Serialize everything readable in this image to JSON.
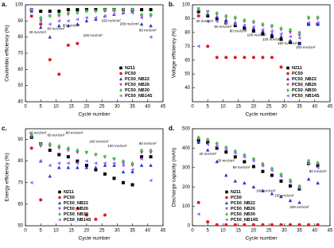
{
  "chart_data": [
    {
      "type": "scatter",
      "panel": "a.",
      "x_label": "Cycle number",
      "y_label": "Coulombic efficiency (%)",
      "x": [
        2,
        5,
        8,
        11,
        14,
        17,
        20,
        23,
        26,
        29,
        32,
        35,
        38,
        41
      ],
      "xlim": [
        0,
        45
      ],
      "xticks": [
        0,
        5,
        10,
        15,
        20,
        25,
        30,
        35,
        40,
        45
      ],
      "ylim": [
        40,
        100
      ],
      "yticks": [
        40,
        50,
        60,
        70,
        80,
        90,
        100
      ],
      "legend": "lower right",
      "series": [
        {
          "name": "N211",
          "color": "#000000",
          "marker": "square",
          "values": [
            97,
            96,
            96,
            96,
            97,
            97,
            97,
            97,
            97,
            97,
            97,
            97,
            97,
            97
          ]
        },
        {
          "name": "PC50",
          "color": "#e41a1c",
          "marker": "circle",
          "values": [
            93,
            88,
            66,
            57,
            75,
            76,
            null,
            null,
            null,
            null,
            null,
            null,
            null,
            null
          ]
        },
        {
          "name": "PC50_NB22",
          "color": "#2233cc",
          "marker": "triangle-up",
          "values": [
            96,
            86,
            80,
            87,
            87,
            88,
            90,
            91,
            93,
            94,
            95,
            96,
            88,
            87
          ]
        },
        {
          "name": "PC50_NB26",
          "color": "#cc33cc",
          "marker": "triangle-down",
          "values": [
            97,
            91,
            93,
            93,
            94,
            95,
            96,
            96,
            96,
            96,
            97,
            97,
            93,
            93
          ]
        },
        {
          "name": "PC50_NB30",
          "color": "#33cc33",
          "marker": "diamond",
          "values": [
            97,
            92,
            93,
            94,
            95,
            95,
            96,
            96,
            97,
            97,
            97,
            97,
            94,
            94
          ]
        },
        {
          "name": "PC50_NB14S",
          "color": "#9966ff",
          "marker": "triangle-left",
          "values": [
            97,
            90,
            88,
            90,
            90,
            91,
            92,
            92,
            93,
            94,
            95,
            95,
            92,
            80
          ]
        }
      ],
      "annotations": [
        {
          "text": "40 mA/cm²",
          "x": 4,
          "y": 83
        },
        {
          "text": "60 mA/cm²",
          "x": 10,
          "y": 85
        },
        {
          "text": "80 mA/cm²",
          "x": 15,
          "y": 87
        },
        {
          "text": "100 mA/cm²",
          "x": 22,
          "y": 81
        },
        {
          "text": "150 mA/cm²",
          "x": 28,
          "y": 90
        },
        {
          "text": "200 mA/cm²",
          "x": 34,
          "y": 88
        },
        {
          "text": "80 mA/cm²",
          "x": 40,
          "y": 84
        }
      ]
    },
    {
      "type": "scatter",
      "panel": "b.",
      "x_label": "Cycle number",
      "y_label": "Voltage efficiency (%)",
      "x": [
        2,
        5,
        8,
        11,
        14,
        17,
        20,
        23,
        26,
        29,
        32,
        35,
        38,
        41
      ],
      "xlim": [
        0,
        45
      ],
      "xticks": [
        0,
        5,
        10,
        15,
        20,
        25,
        30,
        35,
        40,
        45
      ],
      "ylim": [
        30,
        100
      ],
      "yticks": [
        40,
        50,
        60,
        70,
        80,
        90,
        100
      ],
      "legend": "lower right",
      "series": [
        {
          "name": "N211",
          "color": "#000000",
          "marker": "square",
          "values": [
            95,
            92,
            90,
            87,
            85,
            83,
            81,
            79,
            77,
            75,
            73,
            72,
            86,
            86
          ]
        },
        {
          "name": "PC50",
          "color": "#e41a1c",
          "marker": "circle",
          "values": [
            92,
            70,
            62,
            62,
            62,
            62,
            62,
            62,
            62,
            55,
            null,
            null,
            null,
            null
          ]
        },
        {
          "name": "PC50_NB22",
          "color": "#2233cc",
          "marker": "triangle-up",
          "values": [
            96,
            93,
            91,
            89,
            87,
            85,
            83,
            81,
            79,
            77,
            74,
            72,
            86,
            86
          ]
        },
        {
          "name": "PC50_NB26",
          "color": "#cc33cc",
          "marker": "triangle-down",
          "values": [
            97,
            95,
            93,
            91,
            90,
            88,
            87,
            85,
            84,
            82,
            80,
            78,
            90,
            90
          ]
        },
        {
          "name": "PC50_NB30",
          "color": "#33cc33",
          "marker": "diamond",
          "values": [
            97,
            95,
            94,
            92,
            91,
            89,
            88,
            86,
            85,
            83,
            82,
            80,
            91,
            91
          ]
        },
        {
          "name": "PC50_NB14S",
          "color": "#9966ff",
          "marker": "triangle-left",
          "values": [
            70,
            88,
            88,
            87,
            86,
            85,
            84,
            82,
            81,
            79,
            77,
            76,
            87,
            87
          ]
        }
      ],
      "annotations": [
        {
          "text": "40 mA/cm²",
          "x": 4,
          "y": 88
        },
        {
          "text": "60 mA/cm²",
          "x": 10,
          "y": 84
        },
        {
          "text": "80 mA/cm²",
          "x": 15,
          "y": 81
        },
        {
          "text": "100 mA/cm²",
          "x": 21,
          "y": 78
        },
        {
          "text": "120 mA/cm²",
          "x": 26,
          "y": 75
        },
        {
          "text": "150 mA/cm²",
          "x": 31,
          "y": 72
        },
        {
          "text": "200 mA/cm²",
          "x": 37,
          "y": 69
        }
      ]
    },
    {
      "type": "scatter",
      "panel": "c.",
      "x_label": "Cycle number",
      "y_label": "Energy efficiency (%)",
      "x": [
        2,
        5,
        8,
        11,
        14,
        17,
        20,
        23,
        26,
        29,
        32,
        35,
        38,
        41
      ],
      "xlim": [
        0,
        45
      ],
      "xticks": [
        0,
        5,
        10,
        15,
        20,
        25,
        30,
        35,
        40,
        45
      ],
      "ylim": [
        50,
        95
      ],
      "yticks": [
        50,
        60,
        70,
        80,
        90
      ],
      "legend": "lower left",
      "series": [
        {
          "name": "N211",
          "color": "#000000",
          "marker": "square",
          "values": [
            91,
            88,
            85,
            83,
            82,
            80,
            78,
            76,
            74,
            72,
            70,
            69,
            82,
            82
          ]
        },
        {
          "name": "PC50",
          "color": "#e41a1c",
          "marker": "circle",
          "values": [
            86,
            62,
            null,
            null,
            null,
            58,
            55,
            53,
            55,
            null,
            null,
            null,
            null,
            null
          ]
        },
        {
          "name": "PC50_NB22",
          "color": "#2233cc",
          "marker": "triangle-up",
          "values": [
            91,
            80,
            73,
            77,
            77,
            77,
            77,
            77,
            78,
            78,
            75,
            75,
            78,
            78
          ]
        },
        {
          "name": "PC50_NB26",
          "color": "#cc33cc",
          "marker": "triangle-down",
          "values": [
            92,
            87,
            87,
            86,
            85,
            84,
            84,
            83,
            82,
            81,
            79,
            78,
            84,
            84
          ]
        },
        {
          "name": "PC50_NB30",
          "color": "#33cc33",
          "marker": "diamond",
          "values": [
            92,
            88,
            88,
            87,
            86,
            85,
            84,
            83,
            82,
            81,
            80,
            79,
            85,
            85
          ]
        },
        {
          "name": "PC50_NB14S",
          "color": "#9966ff",
          "marker": "triangle-left",
          "values": [
            70,
            80,
            78,
            79,
            79,
            79,
            80,
            79,
            79,
            79,
            78,
            76,
            81,
            71
          ]
        }
      ],
      "annotations": [
        {
          "text": "40 mA/cm²",
          "x": 4,
          "y": 93
        },
        {
          "text": "60 mA/cm²",
          "x": 10,
          "y": 92
        },
        {
          "text": "80 mA/cm²",
          "x": 16,
          "y": 93
        },
        {
          "text": "100 mA/cm²",
          "x": 24,
          "y": 89
        },
        {
          "text": "120 mA/cm²",
          "x": 30,
          "y": 87
        },
        {
          "text": "80 mA/cm²",
          "x": 40,
          "y": 88
        }
      ]
    },
    {
      "type": "scatter",
      "panel": "d.",
      "x_label": "Cycle number",
      "y_label": "Discharge capacity (mAh)",
      "x": [
        2,
        5,
        8,
        11,
        14,
        17,
        20,
        23,
        26,
        29,
        32,
        35,
        38,
        41
      ],
      "xlim": [
        0,
        45
      ],
      "xticks": [
        0,
        5,
        10,
        15,
        20,
        25,
        30,
        35,
        40,
        45
      ],
      "ylim": [
        0,
        500
      ],
      "yticks": [
        0,
        100,
        200,
        300,
        400,
        500
      ],
      "legend": "lower left",
      "series": [
        {
          "name": "N211",
          "color": "#000000",
          "marker": "square",
          "values": [
            440,
            430,
            400,
            380,
            355,
            330,
            305,
            280,
            260,
            230,
            205,
            190,
            320,
            310
          ]
        },
        {
          "name": "PC50",
          "color": "#e41a1c",
          "marker": "circle",
          "values": [
            120,
            20,
            5,
            5,
            5,
            5,
            5,
            5,
            5,
            5,
            5,
            5,
            5,
            5
          ]
        },
        {
          "name": "PC50_NB22",
          "color": "#2233cc",
          "marker": "triangle-up",
          "values": [
            430,
            390,
            330,
            260,
            230,
            220,
            200,
            180,
            165,
            150,
            130,
            120,
            240,
            220
          ]
        },
        {
          "name": "PC50_NB26",
          "color": "#cc33cc",
          "marker": "triangle-down",
          "values": [
            450,
            440,
            420,
            400,
            380,
            360,
            340,
            310,
            290,
            260,
            230,
            200,
            330,
            320
          ]
        },
        {
          "name": "PC50_NB30",
          "color": "#33cc33",
          "marker": "diamond",
          "values": [
            455,
            445,
            425,
            405,
            385,
            365,
            345,
            320,
            295,
            265,
            235,
            205,
            335,
            325
          ]
        },
        {
          "name": "PC50_NB14S",
          "color": "#9966ff",
          "marker": "triangle-left",
          "values": [
            60,
            420,
            410,
            395,
            375,
            355,
            335,
            310,
            285,
            255,
            225,
            195,
            320,
            300
          ]
        }
      ],
      "annotations": [
        {
          "text": "40 mA/cm²",
          "x": 5,
          "y": 370
        },
        {
          "text": "60 mA/cm²",
          "x": 11,
          "y": 335
        },
        {
          "text": "80 mA/cm²",
          "x": 16,
          "y": 300
        },
        {
          "text": "100 mA/cm²",
          "x": 24,
          "y": 180
        },
        {
          "text": "150 mA/cm²",
          "x": 30,
          "y": 155
        },
        {
          "text": "200 mA/cm²",
          "x": 35,
          "y": 95
        },
        {
          "text": "80 mA/cm²",
          "x": 41,
          "y": 280
        }
      ]
    }
  ]
}
